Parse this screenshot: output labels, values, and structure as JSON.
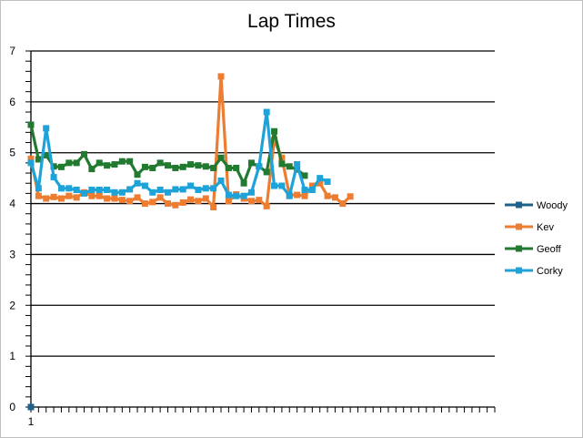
{
  "chart_data": {
    "type": "line",
    "title": "Lap Times",
    "xlabel": "",
    "ylabel": "",
    "ylim": [
      0,
      7
    ],
    "y_ticks": [
      "0",
      "1",
      "2",
      "3",
      "4",
      "5",
      "6",
      "7"
    ],
    "x_tick_labels": [
      "1"
    ],
    "x_count": 61,
    "grid": "horizontal",
    "legend_position": "right",
    "series": [
      {
        "name": "Woody",
        "color": "#1f5f8b",
        "values": [
          0
        ]
      },
      {
        "name": "Kev",
        "color": "#ed7d31",
        "values": [
          4.88,
          4.15,
          4.1,
          4.13,
          4.1,
          4.15,
          4.12,
          4.22,
          4.15,
          4.15,
          4.1,
          4.1,
          4.07,
          4.05,
          4.12,
          4.0,
          4.03,
          4.12,
          4.0,
          3.97,
          4.02,
          4.08,
          4.05,
          4.1,
          3.93,
          6.5,
          4.05,
          4.18,
          4.1,
          4.05,
          4.07,
          3.95,
          5.25,
          4.9,
          4.17,
          4.17,
          4.15,
          4.35,
          4.4,
          4.15,
          4.12,
          4.0,
          4.14
        ]
      },
      {
        "name": "Geoff",
        "color": "#217a2f",
        "values": [
          5.55,
          4.87,
          4.95,
          4.73,
          4.72,
          4.8,
          4.8,
          4.97,
          4.68,
          4.8,
          4.75,
          4.77,
          4.83,
          4.83,
          4.57,
          4.72,
          4.7,
          4.8,
          4.75,
          4.7,
          4.72,
          4.77,
          4.75,
          4.73,
          4.7,
          4.9,
          4.7,
          4.7,
          4.4,
          4.8,
          4.73,
          4.62,
          5.42,
          4.78,
          4.73,
          4.67,
          4.55
        ]
      },
      {
        "name": "Corky",
        "color": "#1ea3d8",
        "values": [
          4.8,
          4.3,
          5.48,
          4.52,
          4.3,
          4.3,
          4.27,
          4.2,
          4.27,
          4.27,
          4.27,
          4.22,
          4.22,
          4.28,
          4.4,
          4.35,
          4.22,
          4.27,
          4.22,
          4.28,
          4.28,
          4.35,
          4.27,
          4.3,
          4.3,
          4.45,
          4.17,
          4.15,
          4.15,
          4.22,
          4.73,
          5.8,
          4.35,
          4.35,
          4.15,
          4.77,
          4.27,
          4.27,
          4.5,
          4.43
        ]
      }
    ]
  }
}
